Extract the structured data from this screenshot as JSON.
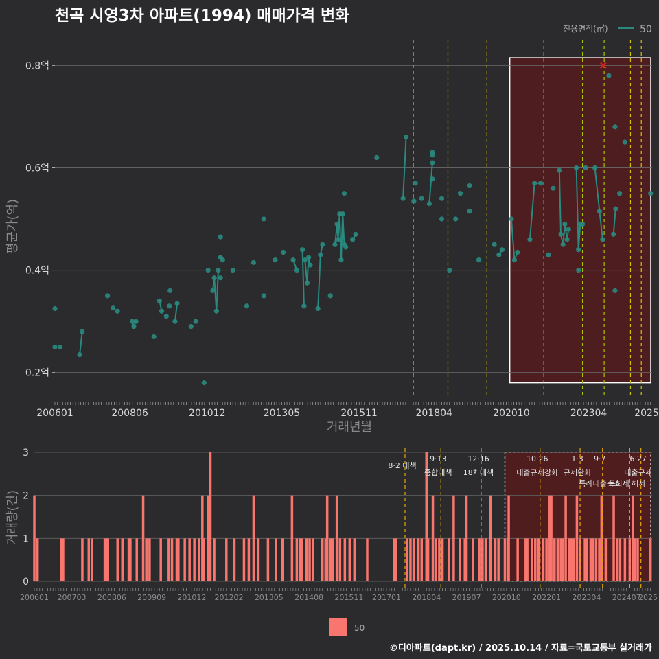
{
  "chart_data": [
    {
      "type": "line",
      "title": "천곡 시영3차 아파트(1994) 매매가격 변화",
      "xlabel": "거래년월",
      "ylabel": "평균가(억)",
      "x_ticks": [
        "200601",
        "200806",
        "201012",
        "201305",
        "201511",
        "201804",
        "202010",
        "202304",
        "2025"
      ],
      "y_ticks": [
        {
          "value": 0.2,
          "label": "0.2억"
        },
        {
          "value": 0.4,
          "label": "0.4억"
        },
        {
          "value": 0.6,
          "label": "0.6억"
        },
        {
          "value": 0.8,
          "label": "0.8억"
        }
      ],
      "xlim": [
        2006.0,
        2025.3
      ],
      "ylim": [
        0.15,
        0.85
      ],
      "legend": {
        "title": "전용면적(㎡)",
        "label": "50",
        "position": "top-right"
      },
      "series_color": "#2a8a80",
      "highlight_color": "#cc2222",
      "region": {
        "start": 2020.7,
        "end": 2025.3
      },
      "event_lines": [
        {
          "x": 2017.58,
          "color": "#d4c400"
        },
        {
          "x": 2018.7,
          "color": "#d4c400"
        },
        {
          "x": 2019.96,
          "color": "#d4c400"
        },
        {
          "x": 2021.8,
          "color": "#d4c400"
        },
        {
          "x": 2023.05,
          "color": "#a8c400"
        },
        {
          "x": 2023.75,
          "color": "#a8c400"
        },
        {
          "x": 2024.6,
          "color": "#d4c400"
        },
        {
          "x": 2024.95,
          "color": "#d4c400"
        }
      ],
      "segments": [
        [
          [
            2006.0,
            0.325
          ]
        ],
        [
          [
            2006.0,
            0.25
          ]
        ],
        [
          [
            2006.17,
            0.25
          ]
        ],
        [
          [
            2006.8,
            0.235
          ],
          [
            2006.88,
            0.28
          ]
        ],
        [
          [
            2007.7,
            0.35
          ]
        ],
        [
          [
            2007.88,
            0.326
          ]
        ],
        [
          [
            2008.02,
            0.32
          ]
        ],
        [
          [
            2008.5,
            0.3
          ],
          [
            2008.55,
            0.29
          ],
          [
            2008.62,
            0.3
          ]
        ],
        [
          [
            2009.2,
            0.27
          ]
        ],
        [
          [
            2009.38,
            0.34
          ],
          [
            2009.45,
            0.32
          ]
        ],
        [
          [
            2009.6,
            0.31
          ]
        ],
        [
          [
            2009.72,
            0.36
          ]
        ],
        [
          [
            2009.7,
            0.33
          ]
        ],
        [
          [
            2009.88,
            0.3
          ],
          [
            2009.95,
            0.335
          ]
        ],
        [
          [
            2010.4,
            0.29
          ]
        ],
        [
          [
            2010.55,
            0.3
          ]
        ],
        [
          [
            2010.82,
            0.18
          ]
        ],
        [
          [
            2010.95,
            0.4
          ]
        ],
        [
          [
            2011.1,
            0.36
          ],
          [
            2011.15,
            0.385
          ],
          [
            2011.22,
            0.32
          ],
          [
            2011.28,
            0.4
          ]
        ],
        [
          [
            2011.35,
            0.465
          ]
        ],
        [
          [
            2011.35,
            0.385
          ]
        ],
        [
          [
            2011.35,
            0.425
          ],
          [
            2011.42,
            0.42
          ]
        ],
        [
          [
            2011.75,
            0.4
          ]
        ],
        [
          [
            2012.2,
            0.33
          ]
        ],
        [
          [
            2012.42,
            0.415
          ]
        ],
        [
          [
            2012.75,
            0.5
          ]
        ],
        [
          [
            2012.75,
            0.35
          ]
        ],
        [
          [
            2013.12,
            0.42
          ]
        ],
        [
          [
            2013.38,
            0.435
          ]
        ],
        [
          [
            2013.7,
            0.42
          ],
          [
            2013.82,
            0.4
          ]
        ],
        [
          [
            2014.0,
            0.44
          ],
          [
            2014.05,
            0.33
          ]
        ],
        [
          [
            2014.08,
            0.42
          ],
          [
            2014.15,
            0.375
          ],
          [
            2014.2,
            0.425
          ],
          [
            2014.25,
            0.41
          ]
        ],
        [
          [
            2014.5,
            0.325
          ],
          [
            2014.58,
            0.43
          ],
          [
            2014.65,
            0.45
          ]
        ],
        [
          [
            2014.9,
            0.35
          ]
        ],
        [
          [
            2015.05,
            0.45
          ],
          [
            2015.12,
            0.49
          ],
          [
            2015.15,
            0.46
          ],
          [
            2015.2,
            0.51
          ],
          [
            2015.25,
            0.42
          ],
          [
            2015.3,
            0.51
          ],
          [
            2015.35,
            0.45
          ],
          [
            2015.4,
            0.445
          ]
        ],
        [
          [
            2015.35,
            0.55
          ]
        ],
        [
          [
            2015.62,
            0.46
          ],
          [
            2015.72,
            0.47
          ]
        ],
        [
          [
            2016.4,
            0.62
          ]
        ],
        [
          [
            2017.25,
            0.54
          ],
          [
            2017.35,
            0.66
          ]
        ],
        [
          [
            2017.6,
            0.535
          ]
        ],
        [
          [
            2017.65,
            0.57
          ]
        ],
        [
          [
            2017.85,
            0.54
          ]
        ],
        [
          [
            2018.1,
            0.53
          ],
          [
            2018.2,
            0.61
          ]
        ],
        [
          [
            2018.2,
            0.63
          ]
        ],
        [
          [
            2018.2,
            0.625
          ]
        ],
        [
          [
            2018.2,
            0.578
          ]
        ],
        [
          [
            2018.5,
            0.54
          ]
        ],
        [
          [
            2018.5,
            0.5
          ]
        ],
        [
          [
            2018.75,
            0.4
          ]
        ],
        [
          [
            2018.95,
            0.5
          ]
        ],
        [
          [
            2019.1,
            0.55
          ]
        ],
        [
          [
            2019.4,
            0.565
          ]
        ],
        [
          [
            2019.4,
            0.515
          ]
        ],
        [
          [
            2019.7,
            0.42
          ]
        ],
        [
          [
            2020.2,
            0.45
          ]
        ],
        [
          [
            2020.35,
            0.43
          ],
          [
            2020.45,
            0.44
          ]
        ],
        [
          [
            2020.75,
            0.5
          ],
          [
            2020.85,
            0.42
          ],
          [
            2020.95,
            0.435
          ]
        ],
        [
          [
            2021.35,
            0.46
          ],
          [
            2021.5,
            0.57
          ],
          [
            2021.7,
            0.57
          ]
        ],
        [
          [
            2021.95,
            0.43
          ]
        ],
        [
          [
            2022.1,
            0.56
          ]
        ],
        [
          [
            2022.3,
            0.595
          ],
          [
            2022.35,
            0.47
          ],
          [
            2022.42,
            0.45
          ],
          [
            2022.48,
            0.49
          ],
          [
            2022.55,
            0.46
          ],
          [
            2022.6,
            0.48
          ]
        ],
        [
          [
            2022.85,
            0.6
          ],
          [
            2022.92,
            0.44
          ],
          [
            2022.98,
            0.49
          ],
          [
            2023.05,
            0.49
          ]
        ],
        [
          [
            2022.92,
            0.4
          ]
        ],
        [
          [
            2023.15,
            0.6
          ]
        ],
        [
          [
            2023.45,
            0.6
          ],
          [
            2023.6,
            0.515
          ],
          [
            2023.7,
            0.46
          ]
        ],
        [
          [
            2024.05,
            0.47
          ],
          [
            2024.12,
            0.52
          ]
        ],
        [
          [
            2024.1,
            0.36
          ]
        ],
        [
          [
            2024.1,
            0.68
          ]
        ],
        [
          [
            2024.25,
            0.55
          ]
        ],
        [
          [
            2024.42,
            0.65
          ]
        ],
        [
          [
            2023.9,
            0.78
          ]
        ],
        [
          [
            2025.25,
            0.55
          ]
        ]
      ],
      "highlight_point": [
        2023.72,
        0.8
      ]
    },
    {
      "type": "bar",
      "ylabel": "거래량(건)",
      "x_ticks": [
        "200601",
        "200703",
        "200806",
        "200909",
        "201012",
        "201202",
        "201305",
        "201408",
        "201511",
        "201701",
        "201804",
        "201907",
        "202010",
        "202201",
        "202304",
        "202407",
        "2025"
      ],
      "y_ticks": [
        0,
        1,
        2,
        3
      ],
      "xlim": [
        2006.0,
        2025.3
      ],
      "ylim": [
        0,
        3
      ],
      "legend": {
        "label": "50",
        "color": "#f8766d"
      },
      "bar_color": "#f8766d",
      "region": {
        "start": 2020.7,
        "end": 2025.3
      },
      "annotations": [
        {
          "x": 2017.58,
          "date": "",
          "text": "8·2 대책",
          "row": 1
        },
        {
          "x": 2018.7,
          "date": "9·13",
          "text": "종합대책",
          "row": 1
        },
        {
          "x": 2019.96,
          "date": "12·16",
          "text": "18차대책",
          "row": 1
        },
        {
          "x": 2021.8,
          "date": "10·26",
          "text": "대출규제강화",
          "row": 1
        },
        {
          "x": 2023.05,
          "date": "1·3",
          "text": "규제완화",
          "row": 1
        },
        {
          "x": 2023.75,
          "date": "9·7",
          "text": "특례대출축소",
          "row": 2
        },
        {
          "x": 2024.6,
          "date": "",
          "text": "토허제 해제",
          "row": 2
        },
        {
          "x": 2024.95,
          "date": "6·27",
          "text": "대출규제",
          "row": 1
        }
      ],
      "bars": [
        [
          2006.0,
          2
        ],
        [
          2006.1,
          1
        ],
        [
          2006.85,
          1
        ],
        [
          2006.9,
          1
        ],
        [
          2007.5,
          1
        ],
        [
          2007.7,
          1
        ],
        [
          2007.8,
          1
        ],
        [
          2008.2,
          1
        ],
        [
          2008.25,
          1
        ],
        [
          2008.3,
          1
        ],
        [
          2008.6,
          1
        ],
        [
          2008.75,
          1
        ],
        [
          2008.95,
          1
        ],
        [
          2009.0,
          1
        ],
        [
          2009.2,
          1
        ],
        [
          2009.4,
          2
        ],
        [
          2009.5,
          1
        ],
        [
          2009.6,
          1
        ],
        [
          2009.95,
          1
        ],
        [
          2010.2,
          1
        ],
        [
          2010.3,
          1
        ],
        [
          2010.45,
          1
        ],
        [
          2010.5,
          1
        ],
        [
          2010.7,
          1
        ],
        [
          2010.85,
          1
        ],
        [
          2011.0,
          1
        ],
        [
          2011.15,
          1
        ],
        [
          2011.25,
          2
        ],
        [
          2011.3,
          1
        ],
        [
          2011.42,
          2
        ],
        [
          2011.5,
          3
        ],
        [
          2011.62,
          1
        ],
        [
          2012.0,
          1
        ],
        [
          2012.25,
          1
        ],
        [
          2012.55,
          1
        ],
        [
          2012.7,
          1
        ],
        [
          2012.85,
          2
        ],
        [
          2013.0,
          1
        ],
        [
          2013.3,
          1
        ],
        [
          2013.55,
          1
        ],
        [
          2013.75,
          1
        ],
        [
          2014.05,
          2
        ],
        [
          2014.2,
          1
        ],
        [
          2014.3,
          1
        ],
        [
          2014.35,
          1
        ],
        [
          2014.5,
          1
        ],
        [
          2014.6,
          1
        ],
        [
          2014.7,
          1
        ],
        [
          2015.0,
          1
        ],
        [
          2015.1,
          1
        ],
        [
          2015.15,
          2
        ],
        [
          2015.25,
          1
        ],
        [
          2015.32,
          1
        ],
        [
          2015.45,
          2
        ],
        [
          2015.55,
          1
        ],
        [
          2015.7,
          1
        ],
        [
          2015.85,
          1
        ],
        [
          2016.0,
          1
        ],
        [
          2016.4,
          1
        ],
        [
          2017.25,
          1
        ],
        [
          2017.3,
          1
        ],
        [
          2017.65,
          1
        ],
        [
          2017.75,
          1
        ],
        [
          2017.85,
          1
        ],
        [
          2018.0,
          1
        ],
        [
          2018.1,
          1
        ],
        [
          2018.25,
          3
        ],
        [
          2018.3,
          1
        ],
        [
          2018.45,
          2
        ],
        [
          2018.55,
          1
        ],
        [
          2018.65,
          1
        ],
        [
          2018.75,
          1
        ],
        [
          2018.95,
          1
        ],
        [
          2019.1,
          2
        ],
        [
          2019.3,
          1
        ],
        [
          2019.45,
          1
        ],
        [
          2019.5,
          2
        ],
        [
          2019.7,
          1
        ],
        [
          2019.9,
          1
        ],
        [
          2020.0,
          1
        ],
        [
          2020.1,
          1
        ],
        [
          2020.25,
          2
        ],
        [
          2020.4,
          1
        ],
        [
          2020.5,
          1
        ],
        [
          2020.7,
          1
        ],
        [
          2020.8,
          1
        ],
        [
          2020.82,
          2
        ],
        [
          2021.1,
          1
        ],
        [
          2021.35,
          1
        ],
        [
          2021.4,
          1
        ],
        [
          2021.55,
          1
        ],
        [
          2021.65,
          1
        ],
        [
          2021.75,
          1
        ],
        [
          2021.9,
          1
        ],
        [
          2022.0,
          1
        ],
        [
          2022.1,
          2
        ],
        [
          2022.15,
          2
        ],
        [
          2022.25,
          1
        ],
        [
          2022.35,
          1
        ],
        [
          2022.45,
          1
        ],
        [
          2022.5,
          1
        ],
        [
          2022.6,
          2
        ],
        [
          2022.7,
          1
        ],
        [
          2022.78,
          1
        ],
        [
          2022.85,
          1
        ],
        [
          2022.95,
          2
        ],
        [
          2023.05,
          1
        ],
        [
          2023.2,
          1
        ],
        [
          2023.25,
          1
        ],
        [
          2023.38,
          1
        ],
        [
          2023.45,
          1
        ],
        [
          2023.55,
          1
        ],
        [
          2023.65,
          1
        ],
        [
          2023.72,
          2
        ],
        [
          2023.85,
          1
        ],
        [
          2024.1,
          2
        ],
        [
          2024.2,
          1
        ],
        [
          2024.3,
          1
        ],
        [
          2024.45,
          1
        ],
        [
          2024.6,
          1
        ],
        [
          2024.7,
          2
        ],
        [
          2024.75,
          1
        ],
        [
          2024.85,
          1
        ],
        [
          2025.25,
          1
        ]
      ]
    }
  ],
  "footer": "©디아파트(dapt.kr) / 2025.10.14 / 자료=국토교통부 실거래가"
}
